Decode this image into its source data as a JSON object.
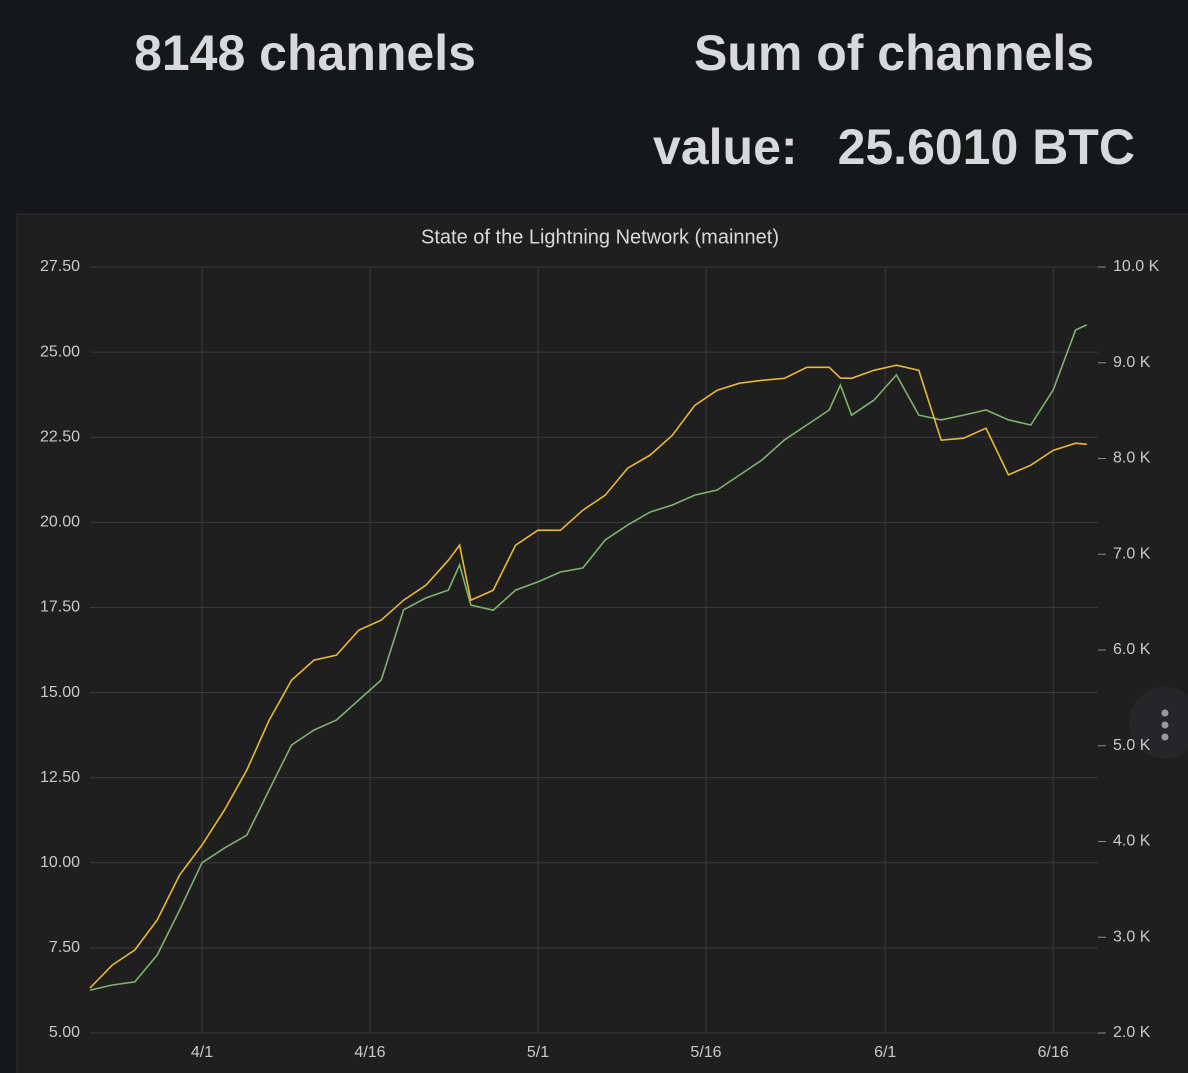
{
  "stats": [
    {
      "text": "8148 channels"
    },
    {
      "label": "Sum of channels value:",
      "value": "25.6010 BTC"
    }
  ],
  "chart_data": {
    "type": "line",
    "title": "State of the Lightning Network (mainnet)",
    "x": [
      "3/22",
      "3/24",
      "3/26",
      "3/28",
      "3/30",
      "4/1",
      "4/3",
      "4/5",
      "4/7",
      "4/9",
      "4/11",
      "4/13",
      "4/15",
      "4/17",
      "4/19",
      "4/21",
      "4/23",
      "4/24",
      "4/25",
      "4/27",
      "4/29",
      "5/1",
      "5/3",
      "5/5",
      "5/7",
      "5/9",
      "5/11",
      "5/13",
      "5/15",
      "5/17",
      "5/19",
      "5/21",
      "5/23",
      "5/25",
      "5/27",
      "5/28",
      "5/29",
      "5/31",
      "6/2",
      "6/4",
      "6/6",
      "6/8",
      "6/10",
      "6/12",
      "6/14",
      "6/16",
      "6/18",
      "6/19"
    ],
    "series": [
      {
        "color": "#7eb26d",
        "values": [
          6.26,
          6.41,
          6.5,
          7.29,
          8.61,
          10.0,
          10.43,
          10.81,
          12.14,
          13.46,
          13.9,
          14.19,
          14.78,
          15.37,
          17.43,
          17.78,
          18.01,
          18.75,
          17.57,
          17.42,
          18.01,
          18.25,
          18.54,
          18.66,
          19.48,
          19.92,
          20.3,
          20.51,
          20.8,
          20.95,
          21.39,
          21.83,
          22.42,
          22.86,
          23.3,
          24.03,
          23.15,
          23.59,
          24.33,
          23.15,
          23.01,
          23.15,
          23.3,
          23.01,
          22.86,
          23.89,
          25.65,
          25.8
        ]
      },
      {
        "color": "#eab839",
        "axis": "y2",
        "values": [
          2470,
          2710,
          2867,
          3180,
          3650,
          3963,
          4328,
          4746,
          5268,
          5686,
          5894,
          5946,
          6207,
          6312,
          6520,
          6677,
          6938,
          7095,
          6520,
          6625,
          7095,
          7251,
          7250,
          7460,
          7617,
          7899,
          8034,
          8243,
          8556,
          8713,
          8786,
          8817,
          8838,
          8953,
          8953,
          8840,
          8838,
          8921,
          8974,
          8921,
          8191,
          8212,
          8316,
          7830,
          7930,
          8086,
          8160,
          8148
        ]
      }
    ],
    "xlim": [
      "3/22",
      "6/20"
    ],
    "xticks": [
      "4/1",
      "4/16",
      "5/1",
      "5/16",
      "6/1",
      "6/16"
    ],
    "ylim": [
      5,
      27.5
    ],
    "yticks": [
      {
        "value": 5,
        "label": "5.00"
      },
      {
        "value": 7.5,
        "label": "7.50"
      },
      {
        "value": 10,
        "label": "10.00"
      },
      {
        "value": 12.5,
        "label": "12.50"
      },
      {
        "value": 15,
        "label": "15.00"
      },
      {
        "value": 17.5,
        "label": "17.50"
      },
      {
        "value": 20,
        "label": "20.00"
      },
      {
        "value": 22.5,
        "label": "22.50"
      },
      {
        "value": 25,
        "label": "25.00"
      },
      {
        "value": 27.5,
        "label": "27.50"
      }
    ],
    "y2lim": [
      2000,
      10000
    ],
    "y2ticks": [
      {
        "value": 2000,
        "label": "2.0 K"
      },
      {
        "value": 3000,
        "label": "3.0 K"
      },
      {
        "value": 4000,
        "label": "4.0 K"
      },
      {
        "value": 5000,
        "label": "5.0 K"
      },
      {
        "value": 6000,
        "label": "6.0 K"
      },
      {
        "value": 7000,
        "label": "7.0 K"
      },
      {
        "value": 8000,
        "label": "8.0 K"
      },
      {
        "value": 9000,
        "label": "9.0 K"
      },
      {
        "value": 10000,
        "label": "10.0 K"
      }
    ],
    "grid": true
  }
}
